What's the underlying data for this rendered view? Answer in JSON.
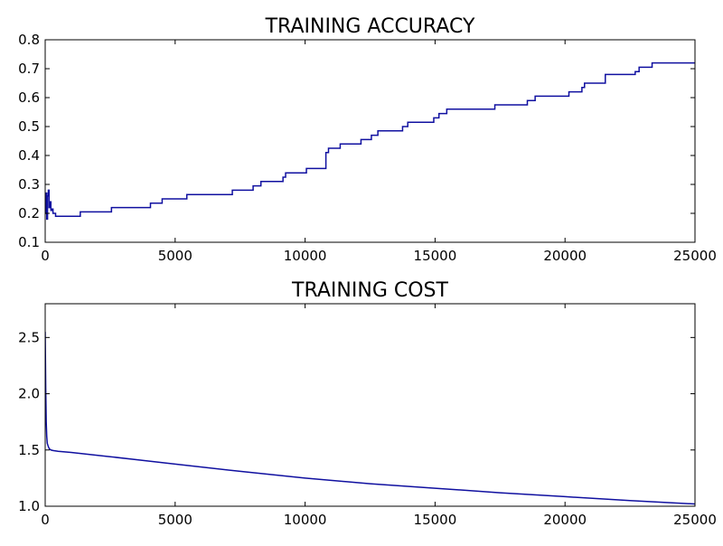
{
  "chart_data": [
    {
      "type": "line",
      "title": "TRAINING ACCURACY",
      "xlabel": "",
      "ylabel": "",
      "xlim": [
        0,
        25000
      ],
      "ylim": [
        0.1,
        0.8
      ],
      "xticks": [
        0,
        5000,
        10000,
        15000,
        20000,
        25000
      ],
      "xtick_labels": [
        "0",
        "5000",
        "10000",
        "15000",
        "20000",
        "25000"
      ],
      "yticks": [
        0.1,
        0.2,
        0.3,
        0.4,
        0.5,
        0.6,
        0.7,
        0.8
      ],
      "ytick_labels": [
        "0.1",
        "0.2",
        "0.3",
        "0.4",
        "0.5",
        "0.6",
        "0.7",
        "0.8"
      ],
      "grid": false,
      "line_color": "#1010a0",
      "step": true,
      "series": [
        {
          "x": [
            0,
            30,
            60,
            90,
            120,
            150,
            180,
            220,
            260,
            300,
            350,
            400,
            1350,
            2550,
            4050,
            4500,
            5450,
            7200,
            8000,
            8300,
            9150,
            9250,
            10050,
            10800,
            10900,
            11350,
            12150,
            12550,
            12800,
            13750,
            13950,
            14950,
            15150,
            15450,
            17300,
            18550,
            18850,
            20150,
            20650,
            20750,
            21550,
            22700,
            22850,
            23350,
            25000
          ],
          "y": [
            0.2,
            0.27,
            0.18,
            0.26,
            0.28,
            0.22,
            0.24,
            0.21,
            0.215,
            0.2,
            0.2,
            0.19,
            0.205,
            0.22,
            0.235,
            0.25,
            0.265,
            0.28,
            0.295,
            0.31,
            0.325,
            0.34,
            0.355,
            0.41,
            0.425,
            0.44,
            0.455,
            0.47,
            0.485,
            0.5,
            0.515,
            0.53,
            0.545,
            0.56,
            0.575,
            0.59,
            0.605,
            0.62,
            0.635,
            0.65,
            0.68,
            0.69,
            0.705,
            0.72,
            0.72
          ]
        }
      ]
    },
    {
      "type": "line",
      "title": "TRAINING COST",
      "xlabel": "",
      "ylabel": "",
      "xlim": [
        0,
        25000
      ],
      "ylim": [
        1.0,
        2.8
      ],
      "xticks": [
        0,
        5000,
        10000,
        15000,
        20000,
        25000
      ],
      "xtick_labels": [
        "0",
        "5000",
        "10000",
        "15000",
        "20000",
        "25000"
      ],
      "yticks": [
        1.0,
        1.5,
        2.0,
        2.5
      ],
      "ytick_labels": [
        "1.0",
        "1.5",
        "2.0",
        "2.5"
      ],
      "grid": false,
      "line_color": "#1010a0",
      "step": false,
      "series": [
        {
          "x": [
            0,
            20,
            40,
            60,
            80,
            120,
            160,
            220,
            300,
            500,
            1000,
            2500,
            5000,
            7500,
            10000,
            12500,
            15000,
            17500,
            20000,
            22500,
            25000
          ],
          "y": [
            2.55,
            2.05,
            1.75,
            1.62,
            1.56,
            1.53,
            1.51,
            1.5,
            1.495,
            1.488,
            1.478,
            1.44,
            1.375,
            1.31,
            1.25,
            1.2,
            1.16,
            1.12,
            1.085,
            1.05,
            1.02
          ]
        }
      ]
    }
  ]
}
